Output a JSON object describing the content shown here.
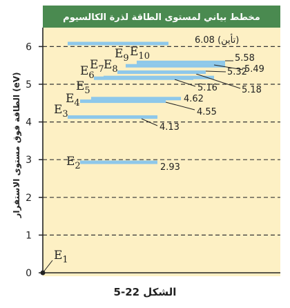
{
  "chart_data": {
    "type": "energy-level-diagram",
    "title": "مخطط بياني لمستوى الطاقة لذرة الكالسيوم",
    "ylabel": "الطاقة فوق مستوى الاستقرار (eV)",
    "ylim": [
      0,
      6.5
    ],
    "yticks": [
      0,
      1,
      2,
      3,
      4,
      5,
      6
    ],
    "grid": true,
    "levels": [
      {
        "name": "E1",
        "sub": "1",
        "energy": 0,
        "value_label": ""
      },
      {
        "name": "E2",
        "sub": "2",
        "energy": 2.93,
        "value_label": "2.93"
      },
      {
        "name": "E3",
        "sub": "3",
        "energy": 4.13,
        "value_label": "4.13"
      },
      {
        "name": "E4",
        "sub": "4",
        "energy": 4.55,
        "value_label": "4.55"
      },
      {
        "name": "E5",
        "sub": "5",
        "energy": 4.62,
        "value_label": "4.62"
      },
      {
        "name": "E6",
        "sub": "6",
        "energy": 5.16,
        "value_label": "5.16"
      },
      {
        "name": "E7",
        "sub": "7",
        "energy": 5.18,
        "value_label": "5.18"
      },
      {
        "name": "E8",
        "sub": "8",
        "energy": 5.32,
        "value_label": "5.32"
      },
      {
        "name": "E9",
        "sub": "9",
        "energy": 5.49,
        "value_label": "5.49"
      },
      {
        "name": "E10",
        "sub": "10",
        "energy": 5.58,
        "value_label": "5.58"
      },
      {
        "name": "ionization",
        "sub": "",
        "energy": 6.08,
        "value_label": "6.08 (تأين)"
      }
    ],
    "colors": {
      "background": "#fdf0c4",
      "header": "#4a8a50",
      "level": "#8ec8ea",
      "grid": "#333333"
    }
  },
  "figure": {
    "caption": "الشكل 22-5"
  }
}
